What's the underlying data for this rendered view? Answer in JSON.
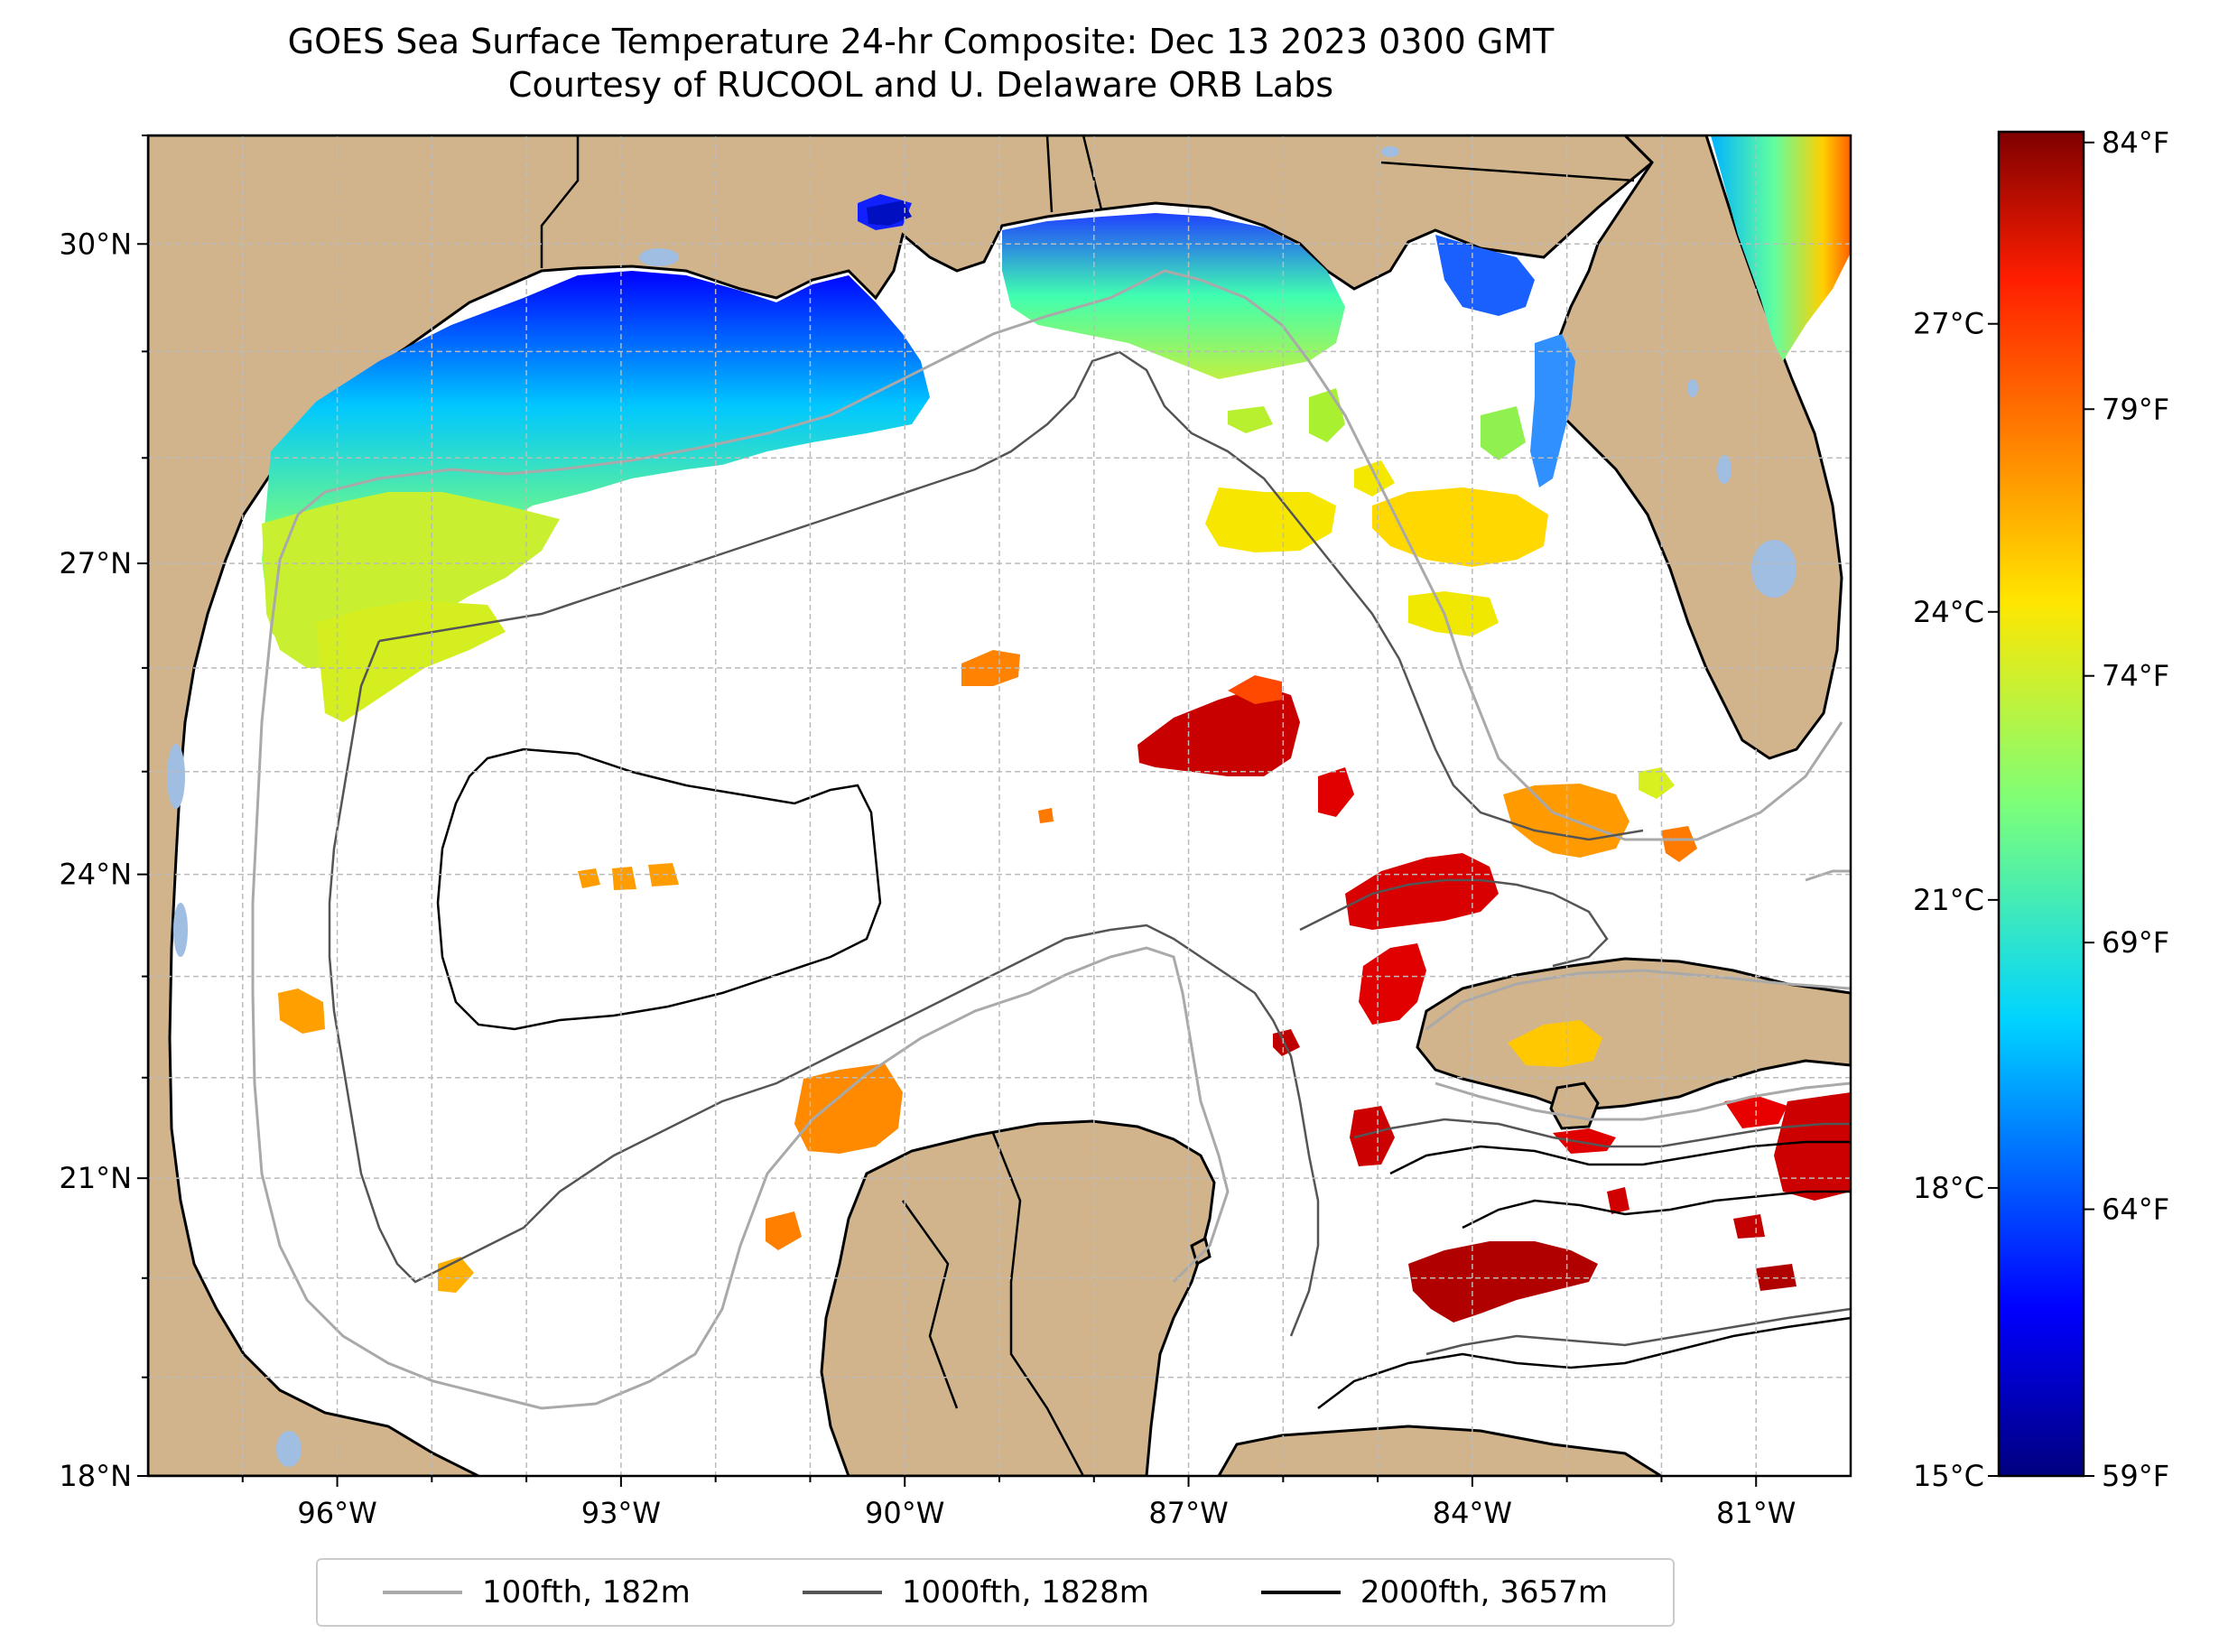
{
  "title": {
    "line1": "GOES Sea Surface Temperature 24-hr Composite: Dec 13 2023 0300 GMT",
    "line2": "Courtesy of RUCOOL and U. Delaware ORB Labs"
  },
  "map": {
    "extent": {
      "lon": [
        -98,
        -80
      ],
      "lat": [
        18,
        31
      ]
    },
    "x_ticks": [
      {
        "lon": -96,
        "label": "96°W"
      },
      {
        "lon": -93,
        "label": "93°W"
      },
      {
        "lon": -90,
        "label": "90°W"
      },
      {
        "lon": -87,
        "label": "87°W"
      },
      {
        "lon": -84,
        "label": "84°W"
      },
      {
        "lon": -81,
        "label": "81°W"
      }
    ],
    "y_ticks": [
      {
        "lat": 30,
        "label": "30°N"
      },
      {
        "lat": 27,
        "label": "27°N"
      },
      {
        "lat": 24,
        "label": "24°N"
      },
      {
        "lat": 21,
        "label": "21°N"
      },
      {
        "lat": 18,
        "label": "18°N"
      }
    ],
    "colors": {
      "land": "#d2b48c",
      "water_bodies": "#a0bde2",
      "ocean": "#ffffff",
      "grid": "#bbbbbb"
    }
  },
  "colorbar": {
    "colormap": "jet",
    "range_c": [
      15,
      29
    ],
    "celsius_ticks": [
      {
        "value": 27,
        "label": "27°C"
      },
      {
        "value": 24,
        "label": "24°C"
      },
      {
        "value": 21,
        "label": "21°C"
      },
      {
        "value": 18,
        "label": "18°C"
      },
      {
        "value": 15,
        "label": "15°C"
      }
    ],
    "fahrenheit_ticks": [
      {
        "value": 84,
        "label": "84°F"
      },
      {
        "value": 79,
        "label": "79°F"
      },
      {
        "value": 74,
        "label": "74°F"
      },
      {
        "value": 69,
        "label": "69°F"
      },
      {
        "value": 64,
        "label": "64°F"
      },
      {
        "value": 59,
        "label": "59°F"
      }
    ]
  },
  "legend": [
    {
      "label": "100fth, 182m",
      "color": "#a9a9a9"
    },
    {
      "label": "1000fth, 1828m",
      "color": "#555555"
    },
    {
      "label": "2000fth, 3657m",
      "color": "#000000"
    }
  ]
}
